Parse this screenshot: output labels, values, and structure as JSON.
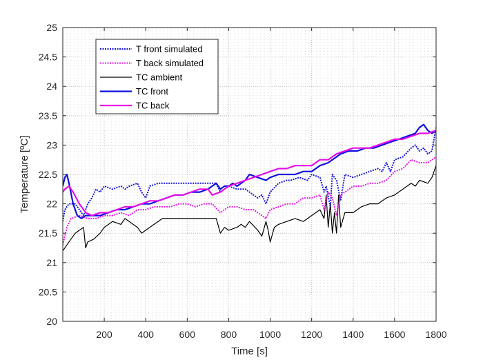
{
  "chart_data": {
    "type": "line",
    "xlabel": "Time [s]",
    "ylabel": "Temperature [ºC]",
    "xlim": [
      0,
      1800
    ],
    "ylim": [
      20,
      25
    ],
    "x_ticks": [
      200,
      400,
      600,
      800,
      1000,
      1200,
      1400,
      1600,
      1800
    ],
    "y_ticks": [
      20,
      20.5,
      21,
      21.5,
      22,
      22.5,
      23,
      23.5,
      24,
      24.5,
      25
    ],
    "grid": "minor dotted",
    "legend_position": "top-left",
    "series": [
      {
        "name": "T front simulated",
        "color": "#1515d9",
        "style": "dotted",
        "x": [
          0,
          10,
          30,
          60,
          80,
          100,
          120,
          140,
          160,
          180,
          200,
          240,
          280,
          300,
          320,
          360,
          380,
          400,
          420,
          460,
          500,
          520,
          540,
          560,
          600,
          640,
          680,
          700,
          740,
          760,
          780,
          800,
          840,
          880,
          900,
          940,
          960,
          980,
          1000,
          1040,
          1080,
          1100,
          1140,
          1180,
          1200,
          1240,
          1260,
          1270,
          1290,
          1300,
          1320,
          1340,
          1360,
          1400,
          1440,
          1480,
          1520,
          1540,
          1560,
          1580,
          1600,
          1640,
          1680,
          1700,
          1720,
          1740,
          1760,
          1780,
          1800
        ],
        "y": [
          21.7,
          21.9,
          22.0,
          22.0,
          21.9,
          21.8,
          22.0,
          22.1,
          22.25,
          22.2,
          22.3,
          22.25,
          22.3,
          22.25,
          22.3,
          22.35,
          22.2,
          22.1,
          22.3,
          22.35,
          22.35,
          22.35,
          22.35,
          22.35,
          22.35,
          22.35,
          22.35,
          22.35,
          22.35,
          22.2,
          22.25,
          22.3,
          22.25,
          22.25,
          22.2,
          22.1,
          22.15,
          22.0,
          22.2,
          22.35,
          22.4,
          22.4,
          22.45,
          22.4,
          22.5,
          22.45,
          22.2,
          22.3,
          21.95,
          22.5,
          22.4,
          22.05,
          22.5,
          22.45,
          22.5,
          22.55,
          22.6,
          22.55,
          22.7,
          22.55,
          22.75,
          22.8,
          22.95,
          23.0,
          22.9,
          22.95,
          22.85,
          22.9,
          23.3
        ]
      },
      {
        "name": "T back simulated",
        "color": "#e619e6",
        "style": "dotted",
        "x": [
          0,
          20,
          40,
          80,
          120,
          160,
          200,
          240,
          280,
          320,
          360,
          400,
          440,
          480,
          520,
          560,
          600,
          640,
          680,
          720,
          760,
          780,
          800,
          840,
          880,
          920,
          960,
          980,
          1000,
          1040,
          1080,
          1120,
          1160,
          1200,
          1240,
          1260,
          1280,
          1300,
          1320,
          1340,
          1360,
          1400,
          1440,
          1480,
          1520,
          1560,
          1600,
          1640,
          1680,
          1720,
          1760,
          1800
        ],
        "y": [
          21.3,
          21.6,
          21.75,
          21.8,
          21.75,
          21.75,
          21.8,
          21.8,
          21.85,
          21.8,
          21.9,
          21.9,
          21.95,
          21.95,
          21.95,
          22.0,
          22.0,
          21.95,
          22.0,
          22.0,
          21.85,
          21.9,
          21.95,
          21.95,
          21.9,
          21.9,
          21.8,
          21.75,
          21.9,
          21.95,
          22.0,
          22.0,
          22.1,
          22.1,
          22.15,
          21.9,
          22.2,
          22.1,
          21.8,
          22.15,
          22.2,
          22.3,
          22.3,
          22.35,
          22.35,
          22.4,
          22.55,
          22.6,
          22.75,
          22.7,
          22.7,
          22.8
        ]
      },
      {
        "name": "TC ambient",
        "color": "#000000",
        "style": "solid",
        "x": [
          0,
          20,
          40,
          60,
          80,
          100,
          110,
          120,
          150,
          180,
          200,
          240,
          280,
          300,
          320,
          360,
          380,
          400,
          440,
          460,
          480,
          520,
          560,
          600,
          640,
          700,
          740,
          760,
          780,
          800,
          840,
          860,
          880,
          900,
          940,
          960,
          980,
          990,
          1000,
          1020,
          1040,
          1080,
          1120,
          1160,
          1200,
          1240,
          1260,
          1270,
          1280,
          1290,
          1300,
          1310,
          1320,
          1330,
          1340,
          1360,
          1400,
          1440,
          1480,
          1520,
          1560,
          1600,
          1640,
          1680,
          1700,
          1720,
          1760,
          1780,
          1800
        ],
        "y": [
          21.2,
          21.3,
          21.4,
          21.5,
          21.55,
          21.6,
          21.25,
          21.35,
          21.4,
          21.5,
          21.6,
          21.7,
          21.65,
          21.75,
          21.7,
          21.6,
          21.5,
          21.55,
          21.65,
          21.7,
          21.75,
          21.75,
          21.75,
          21.75,
          21.75,
          21.75,
          21.75,
          21.5,
          21.6,
          21.55,
          21.6,
          21.65,
          21.6,
          21.7,
          21.55,
          21.45,
          21.7,
          21.55,
          21.35,
          21.6,
          21.65,
          21.7,
          21.75,
          21.7,
          21.8,
          21.9,
          21.75,
          22.15,
          21.6,
          22.0,
          21.5,
          21.85,
          21.5,
          22.15,
          21.6,
          21.85,
          21.85,
          21.95,
          22.0,
          22.0,
          22.1,
          22.15,
          22.25,
          22.35,
          22.3,
          22.4,
          22.35,
          22.45,
          22.65
        ]
      },
      {
        "name": "TC front",
        "color": "#1010e0",
        "style": "solid",
        "x": [
          0,
          10,
          20,
          30,
          50,
          70,
          90,
          110,
          140,
          180,
          220,
          260,
          300,
          340,
          380,
          420,
          460,
          500,
          540,
          580,
          620,
          660,
          700,
          720,
          740,
          760,
          780,
          800,
          820,
          840,
          880,
          900,
          940,
          980,
          1000,
          1040,
          1080,
          1120,
          1160,
          1200,
          1240,
          1280,
          1300,
          1340,
          1380,
          1420,
          1460,
          1500,
          1540,
          1580,
          1620,
          1660,
          1700,
          1720,
          1740,
          1760,
          1780,
          1800
        ],
        "y": [
          22.3,
          22.45,
          22.5,
          22.35,
          22.0,
          21.8,
          21.75,
          21.8,
          21.8,
          21.8,
          21.85,
          21.9,
          21.9,
          21.95,
          22.0,
          22.0,
          22.05,
          22.1,
          22.15,
          22.15,
          22.2,
          22.2,
          22.25,
          22.3,
          22.35,
          22.25,
          22.3,
          22.3,
          22.35,
          22.3,
          22.4,
          22.5,
          22.45,
          22.4,
          22.45,
          22.5,
          22.5,
          22.5,
          22.55,
          22.55,
          22.65,
          22.7,
          22.75,
          22.85,
          22.9,
          22.9,
          22.95,
          22.95,
          23.0,
          23.05,
          23.1,
          23.15,
          23.2,
          23.3,
          23.35,
          23.25,
          23.2,
          23.25
        ]
      },
      {
        "name": "TC back",
        "color": "#e60fe6",
        "style": "solid",
        "x": [
          0,
          10,
          30,
          50,
          80,
          110,
          140,
          180,
          220,
          260,
          300,
          340,
          380,
          420,
          460,
          500,
          540,
          580,
          620,
          660,
          700,
          720,
          760,
          800,
          840,
          880,
          920,
          960,
          1000,
          1040,
          1080,
          1120,
          1160,
          1200,
          1240,
          1280,
          1320,
          1360,
          1400,
          1440,
          1480,
          1520,
          1560,
          1600,
          1640,
          1680,
          1720,
          1760,
          1800
        ],
        "y": [
          22.2,
          22.25,
          22.3,
          22.2,
          22.0,
          21.85,
          21.8,
          21.85,
          21.85,
          21.9,
          21.95,
          21.95,
          22.0,
          22.05,
          22.05,
          22.1,
          22.15,
          22.15,
          22.2,
          22.25,
          22.25,
          22.15,
          22.2,
          22.3,
          22.35,
          22.4,
          22.45,
          22.5,
          22.55,
          22.6,
          22.6,
          22.65,
          22.65,
          22.65,
          22.75,
          22.75,
          22.85,
          22.9,
          22.95,
          22.95,
          22.95,
          23.0,
          23.05,
          23.1,
          23.1,
          23.15,
          23.2,
          23.2,
          23.25
        ]
      }
    ]
  }
}
